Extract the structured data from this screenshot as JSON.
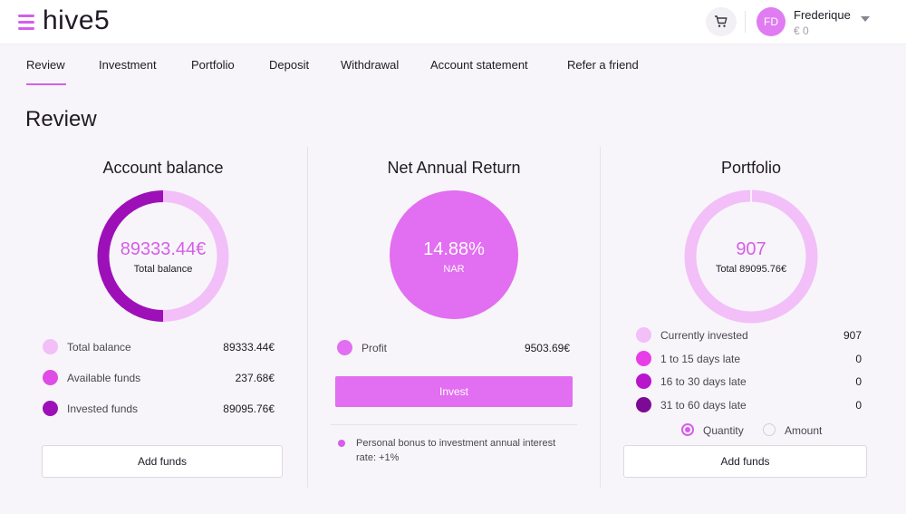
{
  "header": {
    "logo": "hive5",
    "user": {
      "initials": "FD",
      "name": "Frederique",
      "balance": "€ 0"
    }
  },
  "nav": {
    "items": [
      "Review",
      "Investment",
      "Portfolio",
      "Deposit",
      "Withdrawal",
      "Account statement",
      "Refer a friend"
    ],
    "active": "Review"
  },
  "page": {
    "title": "Review"
  },
  "account_balance": {
    "title": "Account balance",
    "center_value": "89333.44€",
    "center_label": "Total balance",
    "legend": [
      {
        "label": "Total balance",
        "value": "89333.44€",
        "color": "#f2bff8"
      },
      {
        "label": "Available funds",
        "value": "237.68€",
        "color": "#e04ce6"
      },
      {
        "label": "Invested funds",
        "value": "89095.76€",
        "color": "#9d10b8"
      }
    ],
    "button": "Add funds"
  },
  "net_annual_return": {
    "title": "Net Annual Return",
    "center_value": "14.88%",
    "center_label": "NAR",
    "legend": [
      {
        "label": "Profit",
        "value": "9503.69€",
        "color": "#e26ef1"
      }
    ],
    "button": "Invest",
    "bonus_text": "Personal bonus to investment annual interest rate: +1%"
  },
  "portfolio": {
    "title": "Portfolio",
    "center_value": "907",
    "center_label": "Total 89095.76€",
    "legend": [
      {
        "label": "Currently invested",
        "value": "907",
        "color": "#f2bff8"
      },
      {
        "label": "1 to 15 days late",
        "value": "0",
        "color": "#e83ee8"
      },
      {
        "label": "16 to 30 days late",
        "value": "0",
        "color": "#b815cc"
      },
      {
        "label": "31 to 60 days late",
        "value": "0",
        "color": "#7d0a94"
      }
    ],
    "toggle": {
      "options": [
        "Quantity",
        "Amount"
      ],
      "selected": "Quantity"
    },
    "button": "Add funds"
  },
  "colors": {
    "accent": "#d65ee9",
    "light": "#f2bff8",
    "dark": "#9d10b8"
  }
}
